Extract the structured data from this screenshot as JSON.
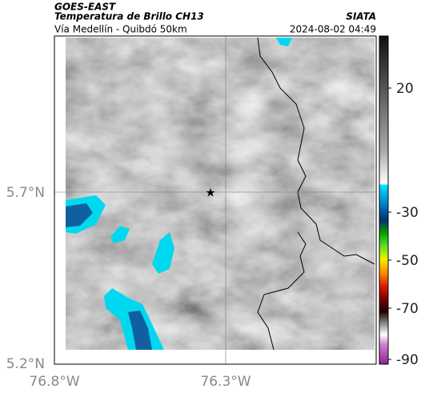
{
  "header": {
    "source": "GOES-EAST",
    "title": "Temperatura de Brillo CH13",
    "agency": "SIATA",
    "subtitle": "Vía Medellín - Quibdó 50km",
    "timestamp": "2024-08-02 04:49"
  },
  "map": {
    "lat_labels": [
      "5.7°N",
      "5.2°N"
    ],
    "lon_labels": [
      "76.8°W",
      "76.3°W"
    ]
  },
  "colorbar": {
    "tick_labels": [
      "20",
      "-30",
      "-50",
      "-70",
      "-90"
    ]
  }
}
